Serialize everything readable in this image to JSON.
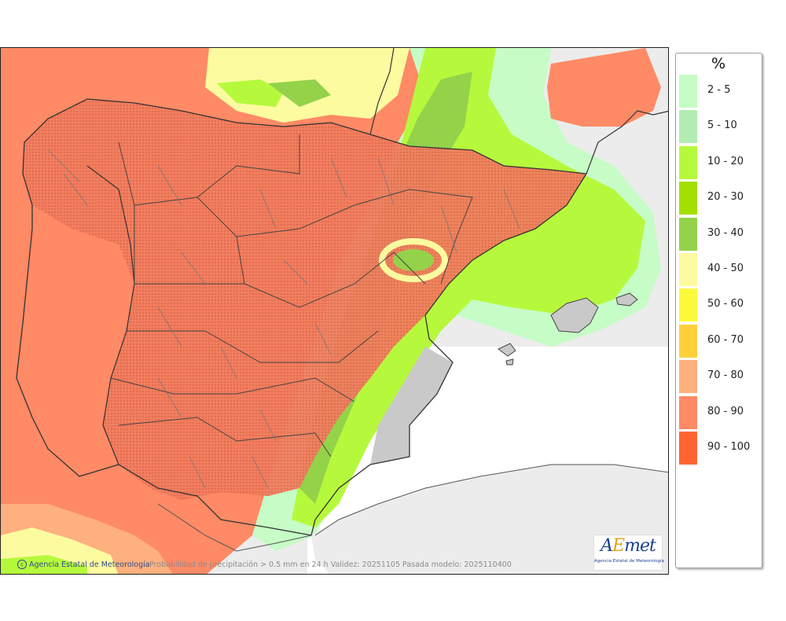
{
  "legend": {
    "title": "%",
    "items": [
      {
        "label": "2 - 5",
        "color": "#c6fcc6"
      },
      {
        "label": "5 - 10",
        "color": "#b2ecb2"
      },
      {
        "label": "10 - 20",
        "color": "#b6f93c"
      },
      {
        "label": "20 - 30",
        "color": "#a3e000"
      },
      {
        "label": "30 - 40",
        "color": "#94d24a"
      },
      {
        "label": "40 - 50",
        "color": "#fdfba0"
      },
      {
        "label": "50 - 60",
        "color": "#fdfa3c"
      },
      {
        "label": "60 - 70",
        "color": "#fed13c"
      },
      {
        "label": "70 - 80",
        "color": "#feb07e"
      },
      {
        "label": "80 - 90",
        "color": "#fe8a66"
      },
      {
        "label": "90 - 100",
        "color": "#fe6432"
      }
    ]
  },
  "footer": {
    "credit": "Agencia Estatal de Meteorología",
    "copyright": "c",
    "caption": "Probabilidad de precipitación > 0.5 mm en 24 h Validez: 20251105 Pasada modelo: 2025110400"
  },
  "logo": {
    "mark_a": "A",
    "mark_e": "E",
    "mark_rest": "met",
    "subtitle": "Agencia Estatal de Meteorología"
  }
}
